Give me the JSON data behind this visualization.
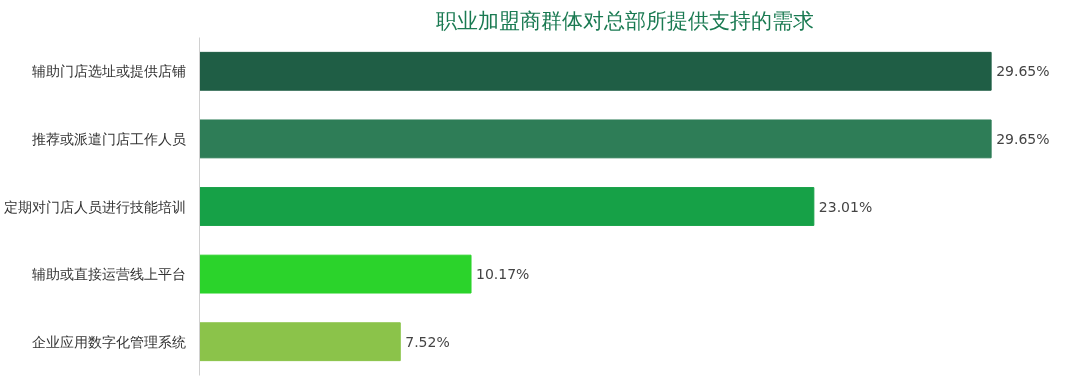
{
  "chart_data": {
    "type": "bar",
    "orientation": "horizontal",
    "title": "职业加盟商群体对总部所提供支持的需求",
    "categories": [
      "辅助门店选址或提供店铺",
      "推荐或派遣门店工作人员",
      "定期对门店人员进行技能培训",
      "辅助或直接运营线上平台",
      "企业应用数字化管理系统"
    ],
    "values": [
      29.65,
      29.65,
      23.01,
      10.17,
      7.52
    ],
    "colors": [
      "#1f5e45",
      "#2e7d57",
      "#16a147",
      "#2bd32b",
      "#8bc34a"
    ],
    "value_labels": [
      "29.65%",
      "29.65%",
      "23.01%",
      "10.17%",
      "7.52%"
    ],
    "grid": false
  }
}
